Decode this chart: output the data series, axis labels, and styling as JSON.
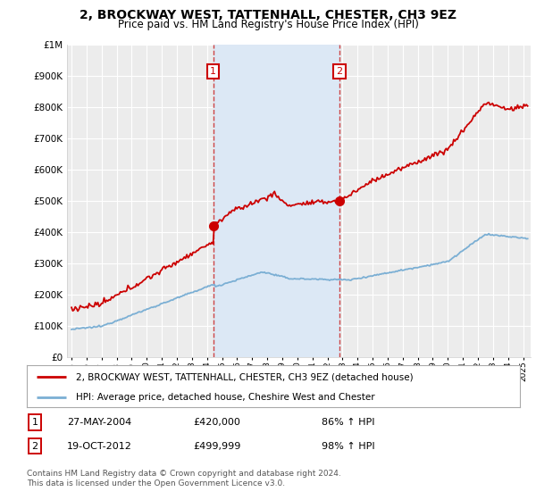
{
  "title": "2, BROCKWAY WEST, TATTENHALL, CHESTER, CH3 9EZ",
  "subtitle": "Price paid vs. HM Land Registry's House Price Index (HPI)",
  "legend_label_red": "2, BROCKWAY WEST, TATTENHALL, CHESTER, CH3 9EZ (detached house)",
  "legend_label_blue": "HPI: Average price, detached house, Cheshire West and Chester",
  "footer": "Contains HM Land Registry data © Crown copyright and database right 2024.\nThis data is licensed under the Open Government Licence v3.0.",
  "sale1_date": "27-MAY-2004",
  "sale1_price": "£420,000",
  "sale1_hpi": "86% ↑ HPI",
  "sale1_year": 2004.41,
  "sale1_value": 420000,
  "sale2_date": "19-OCT-2012",
  "sale2_price": "£499,999",
  "sale2_hpi": "98% ↑ HPI",
  "sale2_year": 2012.8,
  "sale2_value": 499999,
  "ylim": [
    0,
    1000000
  ],
  "xlim_start": 1994.7,
  "xlim_end": 2025.5,
  "background_color": "#ffffff",
  "plot_bg_color": "#ececec",
  "shade_color": "#dce8f5",
  "grid_color": "#ffffff",
  "red_color": "#cc0000",
  "blue_color": "#7bafd4",
  "dashed_line_color": "#cc3333"
}
